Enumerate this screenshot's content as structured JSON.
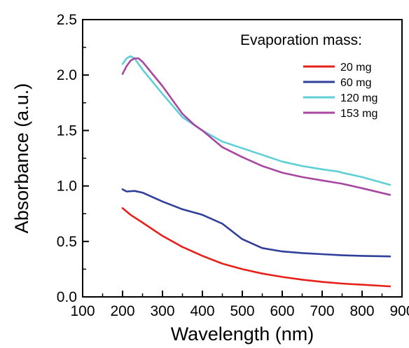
{
  "chart_data": {
    "type": "line",
    "title": "",
    "xlabel": "Wavelength (nm)",
    "ylabel": "Absorbance (a.u.)",
    "xlim": [
      100,
      900
    ],
    "ylim": [
      0.0,
      2.5
    ],
    "x_ticks": [
      "100",
      "200",
      "300",
      "400",
      "500",
      "600",
      "700",
      "800",
      "900"
    ],
    "y_ticks": [
      "0.0",
      "0.5",
      "1.0",
      "1.5",
      "2.0",
      "2.5"
    ],
    "grid": false,
    "legend_title": "Evaporation mass:",
    "legend_position": "top-right",
    "series": [
      {
        "name": "20 mg",
        "color": "#e8201a",
        "x": [
          200,
          220,
          250,
          300,
          350,
          400,
          450,
          500,
          550,
          600,
          650,
          700,
          750,
          800,
          870
        ],
        "y": [
          0.8,
          0.74,
          0.67,
          0.55,
          0.45,
          0.37,
          0.3,
          0.25,
          0.21,
          0.18,
          0.155,
          0.135,
          0.12,
          0.11,
          0.095
        ]
      },
      {
        "name": "60 mg",
        "color": "#2f3f9a",
        "x": [
          200,
          210,
          230,
          250,
          300,
          350,
          400,
          450,
          500,
          550,
          600,
          650,
          700,
          750,
          800,
          870
        ],
        "y": [
          0.97,
          0.95,
          0.955,
          0.94,
          0.86,
          0.79,
          0.74,
          0.66,
          0.52,
          0.44,
          0.41,
          0.395,
          0.385,
          0.375,
          0.37,
          0.365
        ]
      },
      {
        "name": "120 mg",
        "color": "#5fcfd7",
        "x": [
          200,
          210,
          220,
          230,
          250,
          300,
          350,
          400,
          450,
          500,
          550,
          600,
          650,
          700,
          740,
          750,
          800,
          870
        ],
        "y": [
          2.1,
          2.15,
          2.17,
          2.15,
          2.05,
          1.83,
          1.62,
          1.5,
          1.4,
          1.34,
          1.28,
          1.22,
          1.18,
          1.15,
          1.13,
          1.12,
          1.08,
          1.01
        ]
      },
      {
        "name": "153 mg",
        "color": "#a8479f",
        "x": [
          200,
          210,
          220,
          230,
          240,
          250,
          300,
          350,
          380,
          400,
          450,
          500,
          550,
          600,
          650,
          700,
          750,
          800,
          870
        ],
        "y": [
          2.01,
          2.08,
          2.13,
          2.15,
          2.15,
          2.12,
          1.9,
          1.65,
          1.55,
          1.5,
          1.35,
          1.26,
          1.18,
          1.12,
          1.08,
          1.05,
          1.02,
          0.98,
          0.92
        ]
      }
    ]
  }
}
